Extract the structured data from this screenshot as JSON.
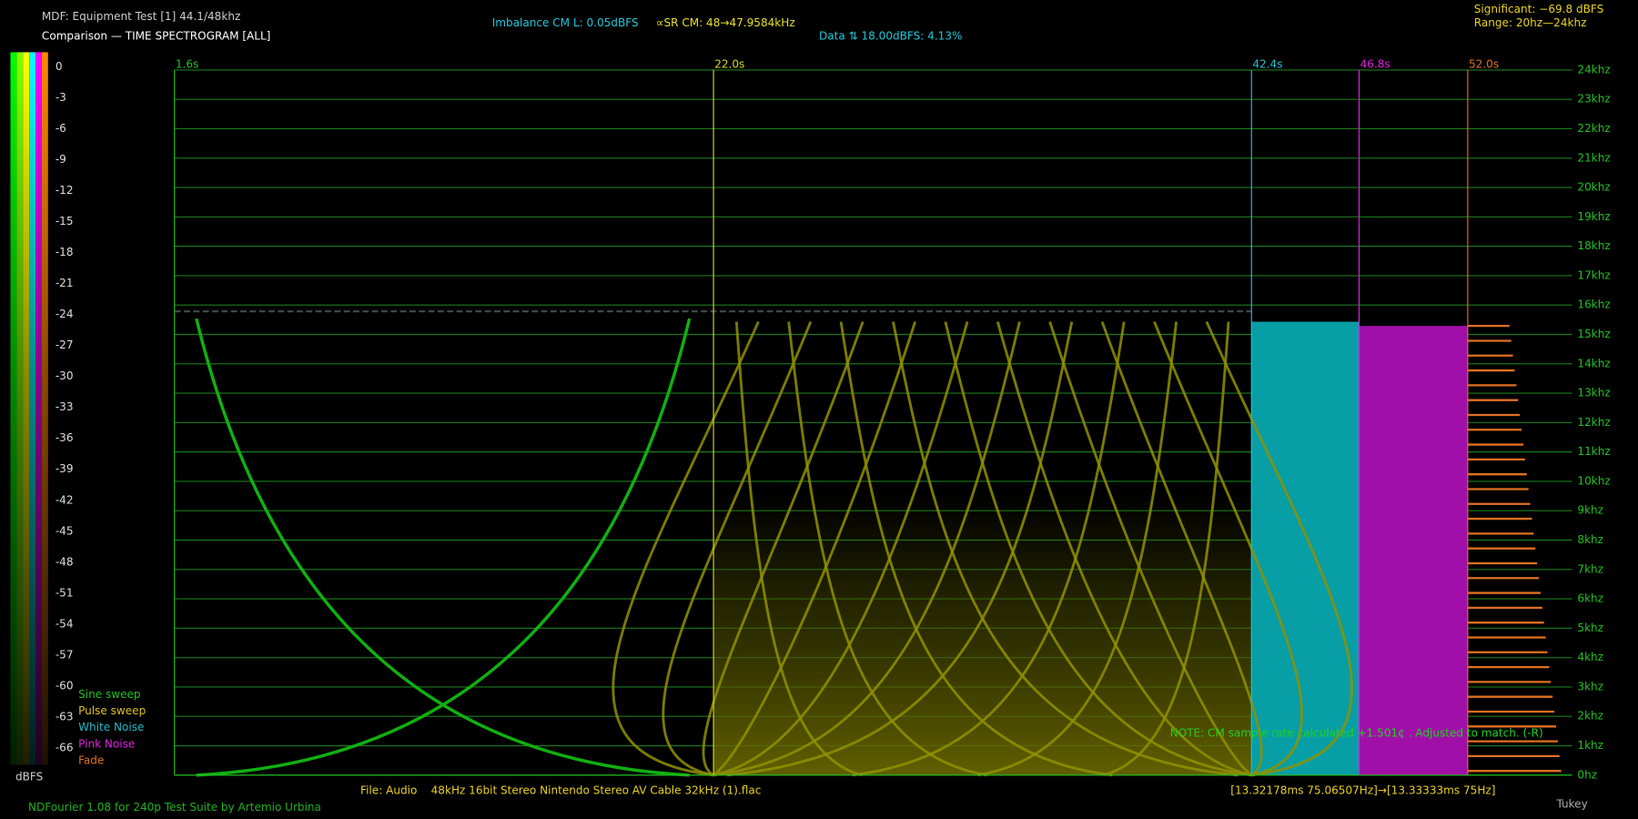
{
  "header": {
    "title": "MDF: Equipment Test [1] 44.1/48khz",
    "subtitle": "Comparison — TIME SPECTROGRAM [ALL]",
    "imbalance": "Imbalance CM L: 0.05dBFS",
    "sample_rate": "∝SR CM: 48→47.9584kHz",
    "data_stat": "Data ⇅ 18.00dBFS: 4.13%",
    "significant": "Significant: −69.8 dBFS",
    "range": "Range: 20hz—24khz"
  },
  "colorbar": {
    "ticks": [
      "0",
      "-3",
      "-6",
      "-9",
      "-12",
      "-15",
      "-18",
      "-21",
      "-24",
      "-27",
      "-30",
      "-33",
      "-36",
      "-39",
      "-42",
      "-45",
      "-48",
      "-51",
      "-54",
      "-57",
      "-60",
      "-63",
      "-66"
    ],
    "unit": "dBFS"
  },
  "legend": [
    "Sine sweep",
    "Pulse sweep",
    "White Noise",
    "Pink Noise",
    "Fade"
  ],
  "time_markers": [
    "1.6s",
    "22.0s",
    "42.4s",
    "46.8s",
    "52.0s"
  ],
  "freq_labels": [
    "24khz",
    "23khz",
    "22khz",
    "21khz",
    "20khz",
    "19khz",
    "18khz",
    "17khz",
    "16khz",
    "15khz",
    "14khz",
    "13khz",
    "12khz",
    "11khz",
    "10khz",
    "9khz",
    "8khz",
    "7khz",
    "6khz",
    "5khz",
    "4khz",
    "3khz",
    "2khz",
    "1khz",
    "0hz"
  ],
  "note": "NOTE: CM sample rate calculated +1.501¢ . Adjusted to match. (-R)",
  "footer": {
    "file": "File: Audio    48kHz 16bit Stereo Nintendo Stereo AV Cable 32kHz (1).flac",
    "timing": "[13.32178ms 75.06507Hz]→[13.33333ms 75Hz]",
    "credit": "NDFourier 1.08 for 240p Test Suite by Artemio Urbina",
    "window": "Tukey"
  }
}
